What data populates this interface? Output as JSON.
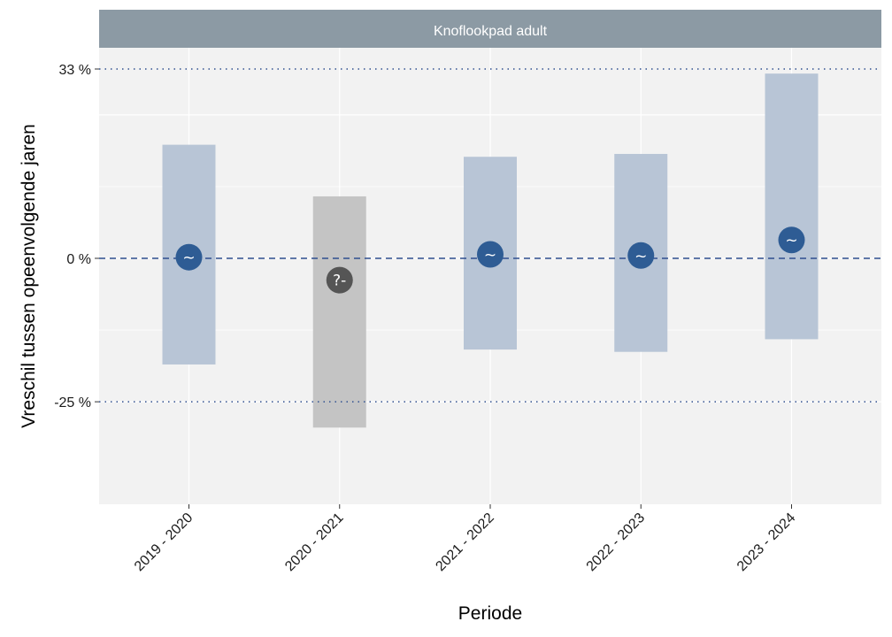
{
  "chart_data": {
    "type": "errorbar",
    "panel_title": "Knoflookpad adult",
    "xlabel": "Periode",
    "ylabel": "Vreschil tussen opeenvolgende jaren",
    "categories": [
      "2019 - 2020",
      "2020 - 2021",
      "2021 - 2022",
      "2022 - 2023",
      "2023 - 2024"
    ],
    "estimates": [
      0.2,
      -3.8,
      0.7,
      0.5,
      3.2
    ],
    "lower": [
      -18.5,
      -29.5,
      -15.9,
      -16.3,
      -14.1
    ],
    "upper": [
      19.8,
      10.8,
      17.7,
      18.2,
      32.2
    ],
    "symbols": [
      "~",
      "?-",
      "~",
      "~",
      "~"
    ],
    "status": [
      "neutral",
      "unknown",
      "neutral",
      "neutral",
      "neutral"
    ],
    "yticks": [
      -25,
      0,
      33
    ],
    "ytick_labels": [
      "-25 %",
      "0 %",
      "33 %"
    ],
    "reference_lines": [
      {
        "value": 33,
        "style": "dotted"
      },
      {
        "value": 0,
        "style": "dashed"
      },
      {
        "value": -25,
        "style": "dotted"
      }
    ],
    "ylim": [
      -32.5,
      41
    ],
    "grid": true,
    "colors": {
      "neutral_bar": "#b8c5d6",
      "unknown_bar": "#c4c4c4",
      "neutral_point": "#2e5c94",
      "unknown_point": "#555555",
      "reference_line": "#2f4f8f",
      "strip_background": "#8c9aa4",
      "panel_background": "#f2f2f2"
    }
  }
}
